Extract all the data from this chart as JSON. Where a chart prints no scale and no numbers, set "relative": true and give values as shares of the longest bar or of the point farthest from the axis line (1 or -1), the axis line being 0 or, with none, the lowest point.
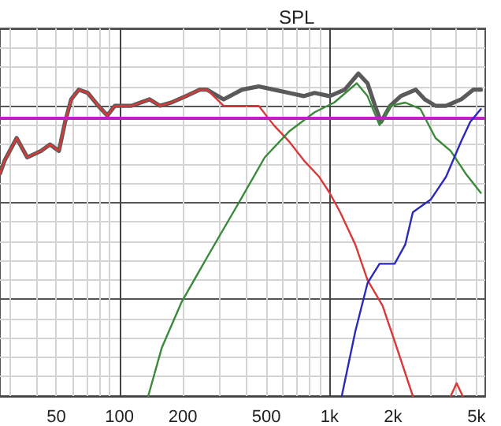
{
  "chart_data": {
    "type": "line",
    "title": "SPL",
    "relative": true,
    "log": "x",
    "grid": true,
    "marker": "none",
    "line_style": "solid",
    "xlim": [
      27,
      5500
    ],
    "xticks": [
      50,
      100,
      200,
      {
        "value": 1000,
        "label": "1k"
      },
      {
        "value": 2000,
        "label": "2k"
      },
      {
        "value": 5000,
        "label": "5k"
      },
      500
    ],
    "series": [
      {
        "color": "#5a5a5a",
        "x": [
          27,
          28.4,
          32.4,
          36.4,
          42.3,
          46.7,
          51.5,
          55.1,
          58.9,
          64,
          70.6,
          79.3,
          87.5,
          95,
          101.6,
          114,
          126,
          139,
          156,
          176,
          207,
          241,
          261,
          313,
          383,
          459,
          542,
          640,
          755,
          848,
          1000,
          1180,
          1370,
          1514,
          1644,
          1757,
          1941,
          2178,
          2570,
          2838,
          3190,
          3581,
          4227,
          4822,
          5240
        ],
        "values": [
          0.69,
          0.73,
          0.8,
          0.74,
          0.76,
          0.78,
          0.76,
          0.85,
          0.92,
          0.95,
          0.94,
          0.9,
          0.87,
          0.9,
          0.9,
          0.9,
          0.91,
          0.92,
          0.9,
          0.91,
          0.93,
          0.95,
          0.95,
          0.92,
          0.95,
          0.96,
          0.95,
          0.94,
          0.93,
          0.94,
          0.93,
          0.95,
          1,
          0.97,
          0.9,
          0.85,
          0.9,
          0.93,
          0.95,
          0.92,
          0.9,
          0.9,
          0.92,
          0.95,
          0.95
        ]
      },
      {
        "color": "#d83a3a",
        "x": [
          27,
          28.4,
          32.4,
          36.4,
          42.3,
          46.7,
          51.5,
          55.1,
          58.9,
          64,
          70.6,
          79.3,
          87.5,
          95,
          101.6,
          114,
          126,
          139,
          156,
          176,
          207,
          241,
          261,
          313,
          370,
          459,
          542,
          640,
          755,
          891,
          1000,
          1122,
          1324,
          1514,
          1786,
          2038,
          2488,
          3000,
          3767,
          4019,
          4296
        ],
        "values": [
          0.69,
          0.73,
          0.8,
          0.74,
          0.76,
          0.78,
          0.76,
          0.85,
          0.92,
          0.95,
          0.94,
          0.9,
          0.87,
          0.9,
          0.9,
          0.9,
          0.91,
          0.92,
          0.9,
          0.91,
          0.93,
          0.95,
          0.95,
          0.9,
          0.9,
          0.9,
          0.84,
          0.79,
          0.73,
          0.68,
          0.63,
          0.57,
          0.47,
          0.36,
          0.28,
          0.17,
          0,
          null,
          0,
          0.04,
          0
        ]
      },
      {
        "color": "#3a8a3a",
        "x": [
          137,
          159,
          197,
          261,
          370,
          491,
          640,
          848,
          1051,
          1346,
          1514,
          1727,
          1941,
          2290,
          2704,
          3190,
          3767,
          4436,
          5240
        ],
        "values": [
          0,
          0.15,
          0.29,
          0.43,
          0.6,
          0.74,
          0.82,
          0.88,
          0.91,
          0.97,
          0.93,
          0.84,
          0.9,
          0.91,
          0.89,
          0.8,
          0.76,
          0.69,
          0.63
        ]
      },
      {
        "color": "#2a2ab8",
        "x": [
          1142,
          1324,
          1514,
          1727,
          2038,
          2290,
          2488,
          3034,
          3581,
          4227,
          4667,
          5240
        ],
        "values": [
          0,
          0.2,
          0.35,
          0.41,
          0.41,
          0.47,
          0.57,
          0.61,
          0.68,
          0.79,
          0.85,
          0.89
        ]
      }
    ],
    "ref_lines": [
      {
        "axis": "y",
        "value": 0.86,
        "color": "#c020c0"
      }
    ]
  }
}
